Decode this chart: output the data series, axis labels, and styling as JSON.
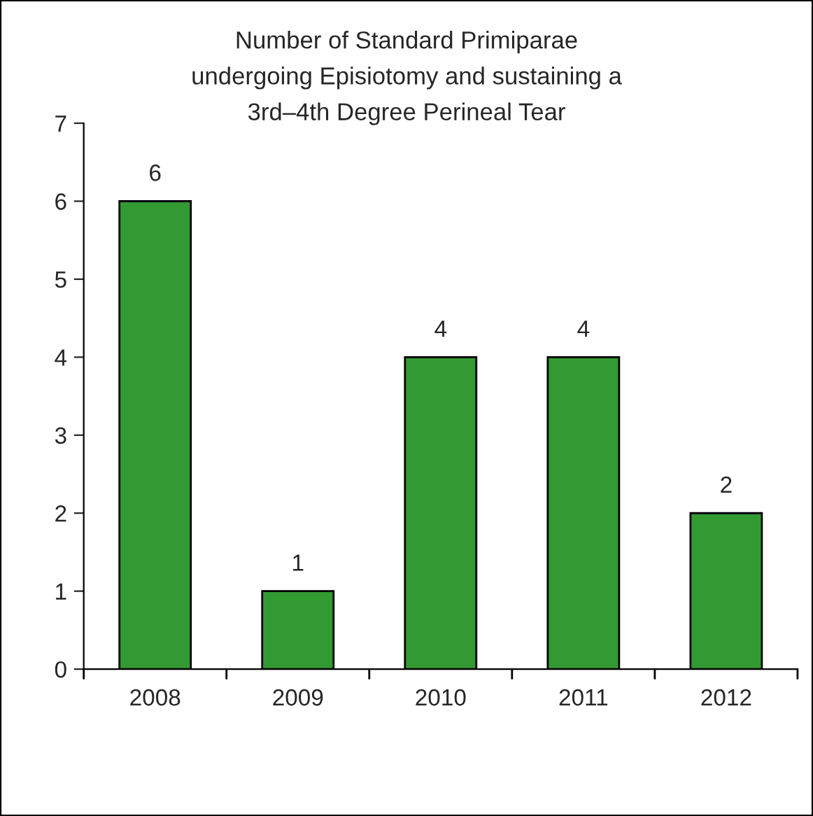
{
  "chart_data": {
    "type": "bar",
    "title": "Number of Standard Primiparae\nundergoing Episiotomy and sustaining a\n3rd–4th Degree Perineal Tear",
    "categories": [
      "2008",
      "2009",
      "2010",
      "2011",
      "2012"
    ],
    "values": [
      6,
      1,
      4,
      4,
      2
    ],
    "color": "#339933",
    "ylim": [
      0,
      7
    ],
    "yticks": [
      0,
      1,
      2,
      3,
      4,
      5,
      6,
      7
    ],
    "data_labels": true,
    "grid": false,
    "legend": false
  }
}
